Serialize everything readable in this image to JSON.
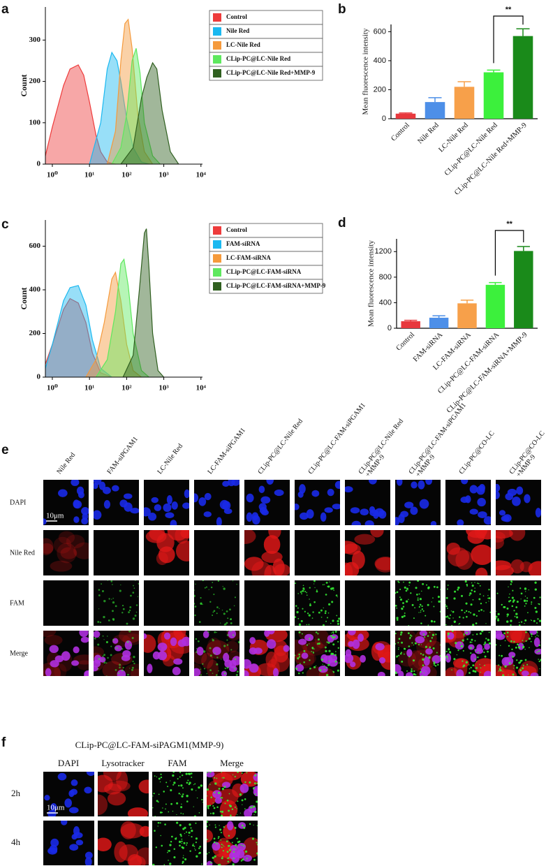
{
  "chart_data": [
    {
      "type": "area",
      "label": "a",
      "ylabel": "Count",
      "xscale": "log",
      "xlim": [
        0.65,
        11000
      ],
      "ylim": [
        0,
        380
      ],
      "xticks": [
        {
          "value": 1,
          "label": "10⁰"
        },
        {
          "value": 10,
          "label": "10¹"
        },
        {
          "value": 100,
          "label": "10²"
        },
        {
          "value": 1000,
          "label": "10³"
        },
        {
          "value": 10000,
          "label": "10⁴"
        }
      ],
      "yticks": [
        0,
        100,
        200,
        300
      ],
      "legend": "right",
      "series": [
        {
          "name": "Control",
          "color": "#ee3b3b",
          "x": [
            0.65,
            1,
            2,
            3,
            5,
            7,
            10,
            15,
            20,
            30,
            50
          ],
          "values": [
            20,
            90,
            190,
            230,
            240,
            215,
            150,
            70,
            30,
            5,
            0
          ]
        },
        {
          "name": "Nile Red",
          "color": "#1ab8f0",
          "x": [
            10,
            20,
            30,
            40,
            55,
            70,
            100,
            150,
            250,
            400
          ],
          "values": [
            0,
            100,
            230,
            270,
            250,
            200,
            110,
            40,
            5,
            0
          ]
        },
        {
          "name": "LC-Nile Red",
          "color": "#f59a3c",
          "x": [
            30,
            50,
            70,
            90,
            110,
            140,
            200,
            300,
            500
          ],
          "values": [
            0,
            80,
            250,
            340,
            350,
            280,
            120,
            30,
            0
          ]
        },
        {
          "name": "CLip-PC@LC-Nile Red",
          "color": "#5ee85e",
          "x": [
            40,
            70,
            100,
            140,
            180,
            230,
            300,
            500,
            800
          ],
          "values": [
            0,
            40,
            120,
            250,
            280,
            220,
            100,
            20,
            0
          ]
        },
        {
          "name": "CLip-PC@LC-Nile Red+MMP-9",
          "color": "#2f5f1f",
          "x": [
            70,
            150,
            250,
            350,
            500,
            650,
            900,
            1500,
            2500
          ],
          "values": [
            0,
            40,
            160,
            210,
            245,
            230,
            130,
            30,
            0
          ]
        }
      ]
    },
    {
      "type": "bar",
      "label": "b",
      "ylabel": "Mean fluorescence intensity",
      "categories": [
        "Control",
        "Nile Red",
        "LC-Nile Red",
        "CLip-PC@LC-Nile Red",
        "CLip-PC@LC-Nile Red+MMP-9"
      ],
      "values": [
        35,
        115,
        220,
        320,
        570
      ],
      "errors": [
        5,
        30,
        35,
        15,
        50
      ],
      "colors": [
        "#e8383d",
        "#4d8fe8",
        "#f7a04a",
        "#3cf03c",
        "#1a8a1a"
      ],
      "ylim": [
        0,
        650
      ],
      "yticks": [
        0,
        200,
        400,
        600
      ],
      "annotation": "**"
    },
    {
      "type": "area",
      "label": "c",
      "ylabel": "Count",
      "xscale": "log",
      "xlim": [
        0.65,
        11000
      ],
      "ylim": [
        0,
        720
      ],
      "xticks": [
        {
          "value": 1,
          "label": "10⁰"
        },
        {
          "value": 10,
          "label": "10¹"
        },
        {
          "value": 100,
          "label": "10²"
        },
        {
          "value": 1000,
          "label": "10³"
        },
        {
          "value": 10000,
          "label": "10⁴"
        }
      ],
      "yticks": [
        0,
        200,
        400,
        600
      ],
      "legend": "right",
      "series": [
        {
          "name": "Control",
          "color": "#ee3b3b",
          "x": [
            0.65,
            1,
            2,
            3,
            5,
            8,
            12,
            20,
            40
          ],
          "values": [
            60,
            150,
            310,
            360,
            340,
            250,
            110,
            20,
            0
          ]
        },
        {
          "name": "FAM-siRNA",
          "color": "#1ab8f0",
          "x": [
            0.65,
            1,
            2,
            3,
            5,
            8,
            12,
            20,
            40
          ],
          "values": [
            40,
            150,
            350,
            410,
            420,
            330,
            170,
            40,
            0
          ]
        },
        {
          "name": "LC-FAM-siRNA",
          "color": "#f59a3c",
          "x": [
            8,
            15,
            25,
            40,
            50,
            70,
            100,
            150,
            250
          ],
          "values": [
            0,
            80,
            250,
            450,
            480,
            350,
            150,
            30,
            0
          ]
        },
        {
          "name": "CLip-PC@LC-FAM-siRNA",
          "color": "#5ee85e",
          "x": [
            15,
            30,
            50,
            70,
            85,
            110,
            150,
            250,
            400
          ],
          "values": [
            0,
            80,
            300,
            520,
            540,
            420,
            200,
            30,
            0
          ]
        },
        {
          "name": "CLip-PC@LC-FAM-siRNA+MMP-9",
          "color": "#2f5f1f",
          "x": [
            80,
            150,
            220,
            300,
            340,
            400,
            500,
            700,
            1000
          ],
          "values": [
            0,
            100,
            400,
            660,
            680,
            500,
            200,
            30,
            0
          ]
        }
      ]
    },
    {
      "type": "bar",
      "label": "d",
      "ylabel": "Mean fluorescence intensity",
      "categories": [
        "Control",
        "FAM-siRNA",
        "LC-FAM-siRNA",
        "CLip-PC@LC-FAM-siRNA",
        "CLip-PC@LC-FAM-siRNA+MMP-9"
      ],
      "values": [
        110,
        165,
        390,
        680,
        1210
      ],
      "errors": [
        15,
        30,
        50,
        35,
        70
      ],
      "colors": [
        "#e8383d",
        "#4d8fe8",
        "#f7a04a",
        "#3cf03c",
        "#1a8a1a"
      ],
      "ylim": [
        0,
        1400
      ],
      "yticks": [
        0,
        400,
        800,
        1200
      ],
      "annotation": "**"
    }
  ],
  "panel_e": {
    "label": "e",
    "columns": [
      [
        "Nile Red"
      ],
      [
        "FAM-siPGAM1"
      ],
      [
        "LC-Nile Red"
      ],
      [
        "LC-FAM-siPGAM1"
      ],
      [
        "CLip-PC@LC-Nile Red"
      ],
      [
        "CLip-PC@LC-FAM-siPGAM1"
      ],
      [
        "CLip-PC@LC-Nile Red",
        "+MMP-9"
      ],
      [
        "CLip-PC@LC-FAM-siPGAM1",
        "+MMP-9"
      ],
      [
        "CLip-PC@CO-LC"
      ],
      [
        "CLip-PC@CO-LC",
        "+MMP-9"
      ]
    ],
    "rows": [
      "DAPI",
      "Nile Red",
      "FAM",
      "Merge"
    ],
    "scale_bar": "10μm"
  },
  "panel_f": {
    "label": "f",
    "title": "CLip-PC@LC-FAM-siPAGM1(MMP-9)",
    "columns": [
      "DAPI",
      "Lysotracker",
      "FAM",
      "Merge"
    ],
    "rows": [
      "2h",
      "4h"
    ],
    "scale_bar": "10μm"
  }
}
